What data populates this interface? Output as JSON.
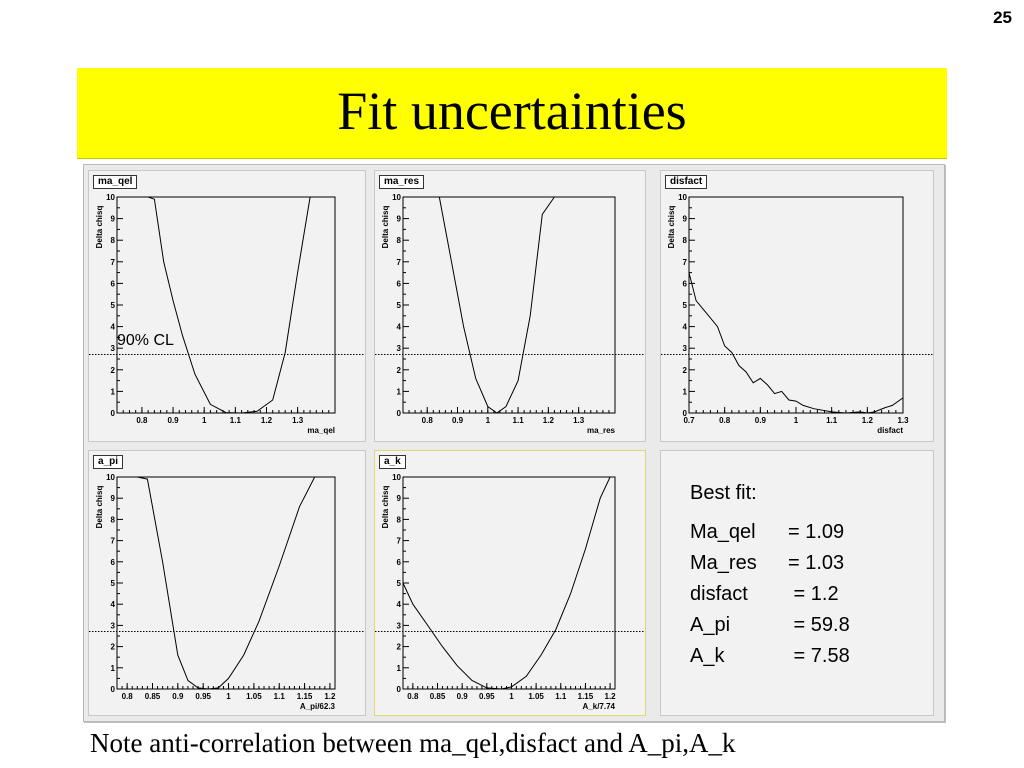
{
  "slide": {
    "number": "25",
    "title": "Fit uncertainties",
    "note": "Note anti-correlation between ma_qel,disfact and A_pi,A_k"
  },
  "colors": {
    "banner": "#ffff00",
    "pad": "#f2f2f2",
    "curve": "#000000"
  },
  "cl_label": "90% CL",
  "best_fit": {
    "heading": "Best fit:",
    "rows": [
      {
        "name": "Ma_qel",
        "eq": "= ",
        "value": "1.09"
      },
      {
        "name": "Ma_res",
        "eq": "= ",
        "value": "1.03"
      },
      {
        "name": "disfact",
        "eq": " = ",
        "value": "1.2"
      },
      {
        "name": "A_pi",
        "eq": " = ",
        "value": "59.8"
      },
      {
        "name": "A_k",
        "eq": " = ",
        "value": "7.58"
      }
    ]
  },
  "chart_data": [
    {
      "type": "line",
      "pad_label": "ma_qel",
      "xlabel": "ma_qel",
      "ylabel": "Delta chisq",
      "xlim": [
        0.72,
        1.42
      ],
      "ylim": [
        0,
        10
      ],
      "xticks": [
        0.8,
        0.9,
        1,
        1.1,
        1.2,
        1.3
      ],
      "xtick_labels": [
        "0.8",
        "0.9",
        "1",
        "1.1",
        "1.2",
        "1.3"
      ],
      "yticks": [
        0,
        1,
        2,
        3,
        4,
        5,
        6,
        7,
        8,
        9,
        10
      ],
      "ytick_labels": [
        "0",
        "1",
        "2",
        "3",
        "4",
        "5",
        "6",
        "7",
        "8",
        "9",
        "10"
      ],
      "cl_line": 2.71,
      "x": [
        0.82,
        0.84,
        0.87,
        0.9,
        0.93,
        0.97,
        1.02,
        1.07,
        1.12,
        1.17,
        1.22,
        1.26,
        1.3,
        1.34
      ],
      "y": [
        10,
        9.9,
        7,
        5.2,
        3.6,
        1.8,
        0.4,
        0.02,
        0.0,
        0.08,
        0.6,
        2.8,
        6.5,
        10
      ]
    },
    {
      "type": "line",
      "pad_label": "ma_res",
      "xlabel": "ma_res",
      "ylabel": "Delta chisq",
      "xlim": [
        0.72,
        1.42
      ],
      "ylim": [
        0,
        10
      ],
      "xticks": [
        0.8,
        0.9,
        1,
        1.1,
        1.2,
        1.3
      ],
      "xtick_labels": [
        "0.8",
        "0.9",
        "1",
        "1.1",
        "1.2",
        "1.3"
      ],
      "yticks": [
        0,
        1,
        2,
        3,
        4,
        5,
        6,
        7,
        8,
        9,
        10
      ],
      "ytick_labels": [
        "0",
        "1",
        "2",
        "3",
        "4",
        "5",
        "6",
        "7",
        "8",
        "9",
        "10"
      ],
      "cl_line": 2.71,
      "x": [
        0.84,
        0.88,
        0.92,
        0.96,
        1.0,
        1.03,
        1.06,
        1.1,
        1.14,
        1.18,
        1.22
      ],
      "y": [
        10,
        7,
        4,
        1.6,
        0.3,
        0.0,
        0.3,
        1.5,
        4.5,
        9.2,
        10
      ]
    },
    {
      "type": "line",
      "pad_label": "disfact",
      "xlabel": "disfact",
      "ylabel": "Delta chisq",
      "xlim": [
        0.7,
        1.3
      ],
      "ylim": [
        0,
        10
      ],
      "xticks": [
        0.7,
        0.8,
        0.9,
        1,
        1.1,
        1.2,
        1.3
      ],
      "xtick_labels": [
        "0.7",
        "0.8",
        "0.9",
        "1",
        "1.1",
        "1.2",
        "1.3"
      ],
      "yticks": [
        0,
        1,
        2,
        3,
        4,
        5,
        6,
        7,
        8,
        9,
        10
      ],
      "ytick_labels": [
        "0",
        "1",
        "2",
        "3",
        "4",
        "5",
        "6",
        "7",
        "8",
        "9",
        "10"
      ],
      "cl_line": 2.71,
      "x": [
        0.7,
        0.72,
        0.75,
        0.78,
        0.8,
        0.82,
        0.84,
        0.86,
        0.88,
        0.9,
        0.92,
        0.94,
        0.96,
        0.98,
        1.0,
        1.02,
        1.05,
        1.1,
        1.14,
        1.18,
        1.2,
        1.22,
        1.25,
        1.27,
        1.3
      ],
      "y": [
        6.5,
        5.2,
        4.6,
        4.0,
        3.1,
        2.8,
        2.2,
        1.9,
        1.4,
        1.6,
        1.3,
        0.9,
        1.0,
        0.6,
        0.55,
        0.35,
        0.2,
        0.05,
        0.0,
        0.05,
        0.0,
        0.05,
        0.25,
        0.35,
        0.7
      ]
    },
    {
      "type": "line",
      "pad_label": "a_pi",
      "xlabel": "A_pi/62.3",
      "ylabel": "Delta chisq",
      "xlim": [
        0.78,
        1.21
      ],
      "ylim": [
        0,
        10
      ],
      "xticks": [
        0.8,
        0.85,
        0.9,
        0.95,
        1,
        1.05,
        1.1,
        1.15,
        1.2
      ],
      "xtick_labels": [
        "0.8",
        "0.85",
        "0.9",
        "0.95",
        "1",
        "1.05",
        "1.1",
        "1.15",
        "1.2"
      ],
      "yticks": [
        0,
        1,
        2,
        3,
        4,
        5,
        6,
        7,
        8,
        9,
        10
      ],
      "ytick_labels": [
        "0",
        "1",
        "2",
        "3",
        "4",
        "5",
        "6",
        "7",
        "8",
        "9",
        "10"
      ],
      "cl_line": 2.71,
      "x": [
        0.82,
        0.84,
        0.87,
        0.9,
        0.92,
        0.94,
        0.96,
        0.98,
        1.0,
        1.03,
        1.06,
        1.1,
        1.14,
        1.17
      ],
      "y": [
        10,
        9.9,
        6,
        1.6,
        0.4,
        0.05,
        0.0,
        0.05,
        0.5,
        1.6,
        3.2,
        5.8,
        8.6,
        10
      ]
    },
    {
      "type": "line",
      "pad_label": "a_k",
      "xlabel": "A_k/7.74",
      "ylabel": "Delta chisq",
      "xlim": [
        0.78,
        1.21
      ],
      "ylim": [
        0,
        10
      ],
      "xticks": [
        0.8,
        0.85,
        0.9,
        0.95,
        1,
        1.05,
        1.1,
        1.15,
        1.2
      ],
      "xtick_labels": [
        "0.8",
        "0.85",
        "0.9",
        "0.95",
        "1",
        "1.05",
        "1.1",
        "1.15",
        "1.2"
      ],
      "yticks": [
        0,
        1,
        2,
        3,
        4,
        5,
        6,
        7,
        8,
        9,
        10
      ],
      "ytick_labels": [
        "0",
        "1",
        "2",
        "3",
        "4",
        "5",
        "6",
        "7",
        "8",
        "9",
        "10"
      ],
      "cl_line": 2.71,
      "x": [
        0.78,
        0.8,
        0.83,
        0.86,
        0.89,
        0.92,
        0.95,
        0.98,
        1.0,
        1.03,
        1.06,
        1.09,
        1.12,
        1.15,
        1.18,
        1.2
      ],
      "y": [
        5.0,
        4.0,
        3.0,
        2.0,
        1.1,
        0.4,
        0.05,
        0.0,
        0.1,
        0.6,
        1.6,
        2.8,
        4.5,
        6.6,
        9.0,
        10
      ]
    }
  ]
}
